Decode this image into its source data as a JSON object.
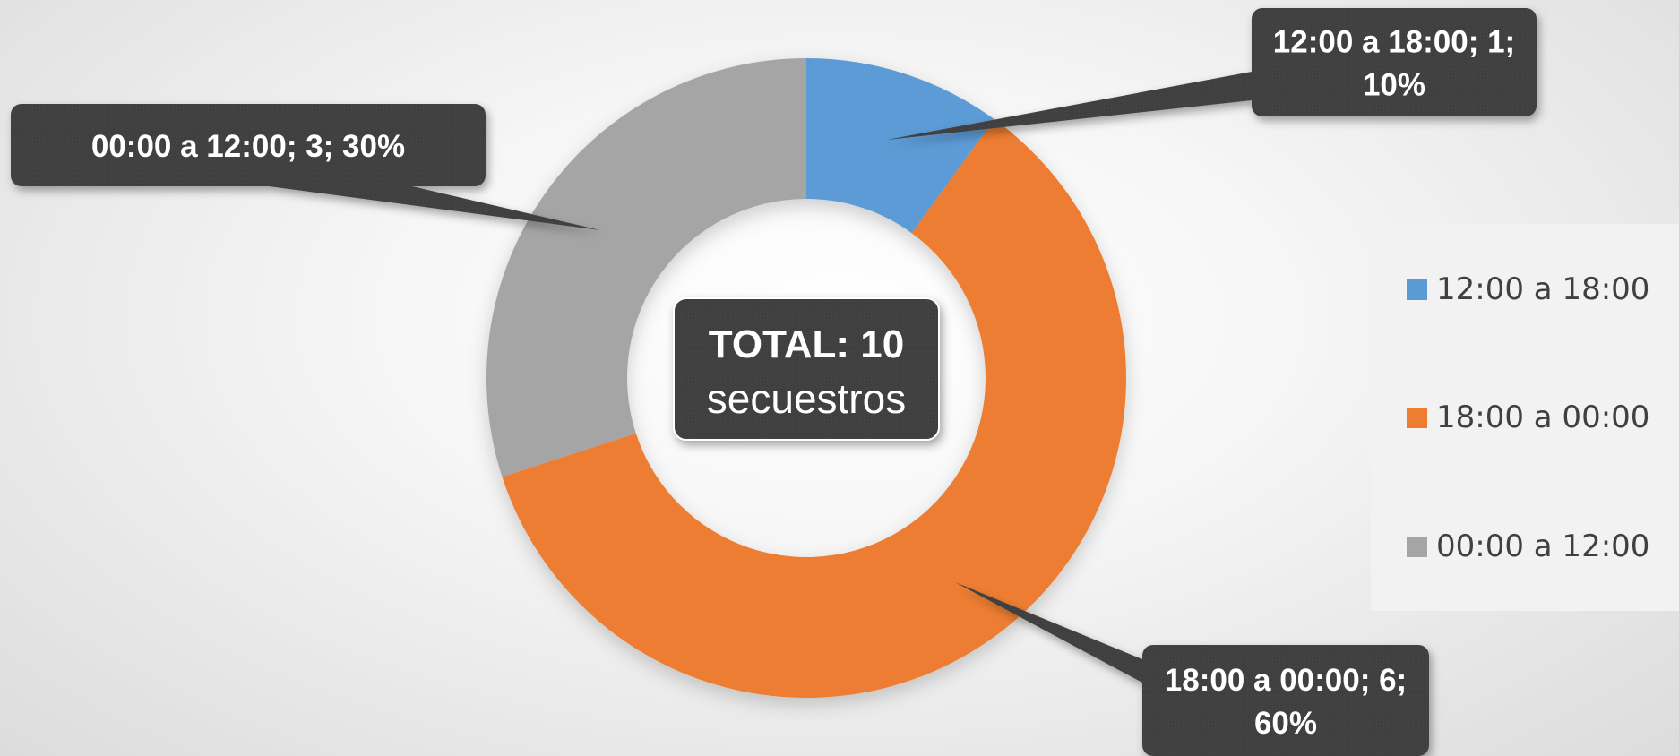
{
  "chart_data": {
    "type": "pie",
    "variant": "donut",
    "categories": [
      "12:00 a 18:00",
      "18:00 a 00:00",
      "00:00 a 12:00"
    ],
    "values": [
      1,
      6,
      3
    ],
    "percentages": [
      10,
      60,
      30
    ],
    "colors": [
      "#5B9BD5",
      "#ED7D31",
      "#A5A5A5"
    ],
    "data_labels": [
      "12:00 a 18:00; 1; 10%",
      "18:00 a 00:00; 6; 60%",
      "00:00 a 12:00; 3; 30%"
    ],
    "center_label": {
      "line1": "TOTAL: 10",
      "line2": "secuestros"
    },
    "legend": {
      "position": "right",
      "items": [
        "12:00 a 18:00",
        "18:00 a 00:00",
        "00:00 a 12:00"
      ]
    }
  }
}
